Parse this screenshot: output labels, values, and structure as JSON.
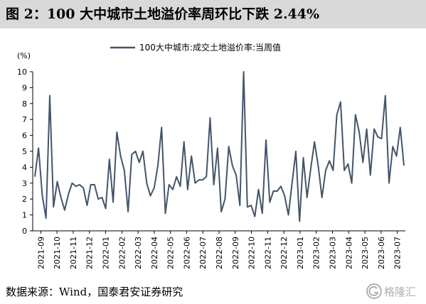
{
  "header": {
    "title": "图 2：100 大中城市土地溢价率周环比下跌 2.44%"
  },
  "footer": {
    "source": "数据来源：Wind，国泰君安证券研究"
  },
  "watermark": {
    "text": "格隆汇",
    "icon": "gelonghui-logo-icon"
  },
  "chart_data": {
    "type": "line",
    "title": "",
    "ylabel": "(%)",
    "xlabel": "",
    "ylim": [
      0,
      10
    ],
    "yticks": [
      0,
      1,
      2,
      3,
      4,
      5,
      6,
      7,
      8,
      9,
      10
    ],
    "grid": false,
    "legend_position": "top-center",
    "x_tick_labels": [
      "2021-09",
      "2021-10",
      "2021-11",
      "2021-12",
      "2022-01",
      "2022-02",
      "2022-03",
      "2022-04",
      "2022-05",
      "2022-06",
      "2022-07",
      "2022-08",
      "2022-09",
      "2022-10",
      "2022-11",
      "2022-12",
      "2023-01",
      "2023-02",
      "2023-03",
      "2023-04",
      "2023-05",
      "2023-06",
      "2023-07"
    ],
    "series": [
      {
        "name": "100大中城市:成交土地溢价率:当周值",
        "color": "#44546a",
        "values": [
          3.4,
          5.2,
          2.2,
          0.8,
          8.5,
          1.5,
          3.1,
          2.1,
          1.3,
          2.3,
          3.0,
          2.8,
          2.9,
          2.7,
          1.6,
          2.9,
          2.9,
          2.0,
          2.1,
          1.4,
          4.5,
          1.8,
          6.2,
          4.7,
          3.8,
          1.2,
          4.8,
          5.0,
          4.3,
          5.0,
          3.0,
          2.2,
          2.7,
          4.1,
          6.5,
          1.1,
          2.9,
          2.6,
          3.4,
          2.8,
          5.6,
          2.6,
          4.7,
          3.0,
          3.2,
          3.2,
          3.4,
          7.1,
          2.9,
          5.2,
          1.2,
          2.0,
          5.3,
          4.1,
          3.5,
          1.6,
          10.0,
          1.5,
          1.6,
          0.9,
          2.6,
          1.1,
          5.7,
          1.8,
          2.5,
          2.5,
          2.8,
          2.2,
          1.0,
          3.0,
          5.0,
          0.6,
          4.6,
          2.1,
          3.9,
          5.6,
          4.1,
          2.1,
          3.8,
          4.4,
          3.8,
          7.3,
          8.1,
          3.8,
          4.2,
          3.0,
          7.3,
          6.2,
          4.3,
          6.4,
          3.5,
          6.4,
          5.9,
          5.8,
          8.5,
          3.0,
          5.3,
          4.7,
          6.5,
          4.1
        ]
      }
    ]
  }
}
